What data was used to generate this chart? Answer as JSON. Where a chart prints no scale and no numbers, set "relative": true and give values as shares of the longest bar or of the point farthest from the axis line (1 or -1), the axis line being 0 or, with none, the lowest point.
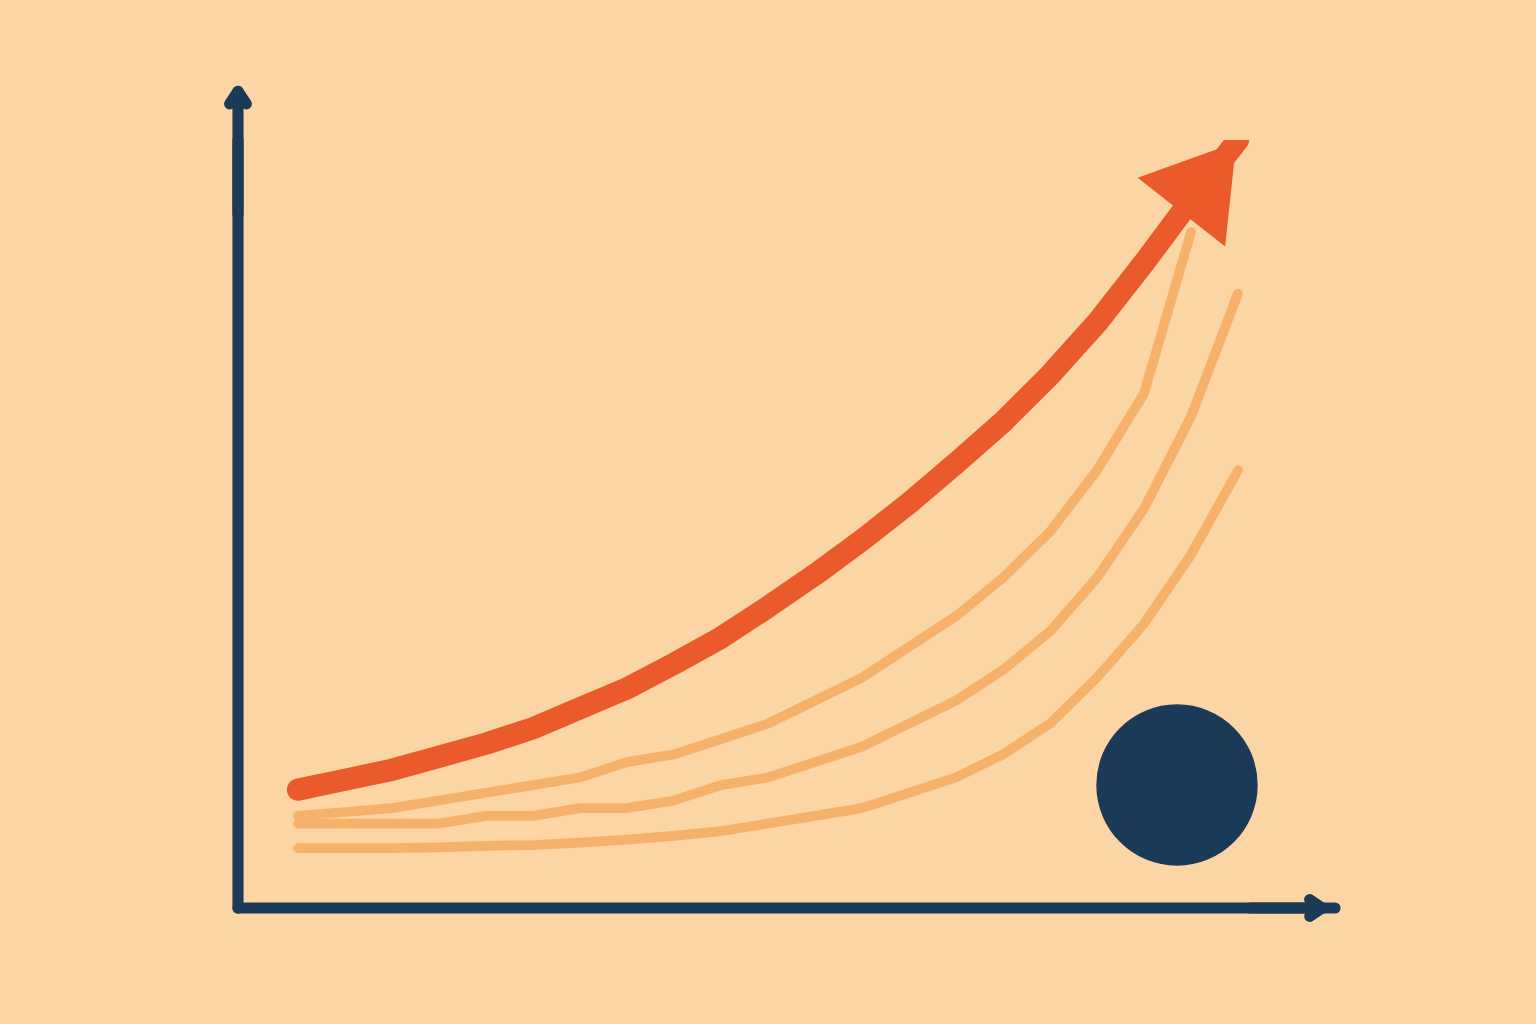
{
  "chart_data": {
    "type": "line",
    "relative": true,
    "categories": [
      null,
      null,
      null,
      null,
      null,
      null,
      null,
      null,
      null,
      null,
      null,
      null,
      null,
      null,
      null,
      null,
      null,
      null,
      null,
      null,
      null
    ],
    "series": [
      {
        "color": "#ea5a2a",
        "values": [
          0.154,
          0.167,
          0.18,
          0.197,
          0.214,
          0.234,
          0.26,
          0.286,
          0.318,
          0.352,
          0.392,
          0.434,
          0.479,
          0.527,
          0.579,
          0.633,
          0.694,
          0.762,
          0.84,
          0.922,
          1
        ]
      },
      {
        "color": "#f6b26b",
        "values": [
          0.12,
          0.125,
          0.13,
          0.14,
          0.15,
          0.16,
          0.17,
          0.19,
          0.2,
          0.22,
          0.24,
          0.27,
          0.3,
          0.34,
          0.38,
          0.43,
          0.49,
          0.57,
          0.67,
          0.88,
          null
        ]
      },
      {
        "color": "#f6b26b",
        "values": [
          0.11,
          0.11,
          0.11,
          0.11,
          0.12,
          0.12,
          0.13,
          0.13,
          0.14,
          0.16,
          0.17,
          0.19,
          0.21,
          0.24,
          0.27,
          0.31,
          0.36,
          0.43,
          0.52,
          0.64,
          0.8
        ]
      },
      {
        "color": "#f6b26b",
        "values": [
          0.078,
          0.078,
          0.078,
          0.079,
          0.081,
          0.082,
          0.085,
          0.089,
          0.094,
          0.1,
          0.11,
          0.12,
          0.13,
          0.15,
          0.17,
          0.2,
          0.24,
          0.3,
          0.37,
          0.46,
          0.57
        ]
      }
    ]
  }
}
